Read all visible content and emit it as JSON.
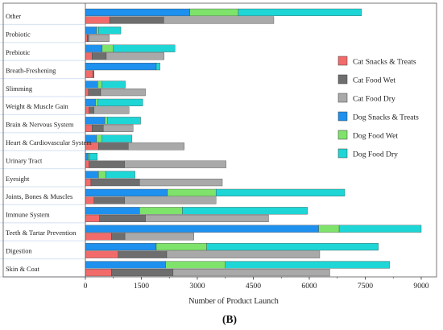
{
  "chart_data": {
    "type": "bar",
    "orientation": "horizontal",
    "stacked": true,
    "categories": [
      "Other",
      "Probiotic",
      "Prebiotic",
      "Breath-Freshening",
      "Slimming",
      "Weight & Muscle Gain",
      "Brain & Nervous System",
      "Heart & Cardiovascular System",
      "Urinary Tract",
      "Eyesight",
      "Joints, Bones & Muscles",
      "Immune System",
      "Teeth & Tartar Prevention",
      "Digestion",
      "Skin & Coat"
    ],
    "series": [
      {
        "name": "Cat Snacks & Treats",
        "color": "#f26b6b",
        "group": "cat",
        "values": [
          650,
          50,
          180,
          200,
          80,
          100,
          180,
          350,
          100,
          150,
          230,
          380,
          700,
          880,
          700
        ]
      },
      {
        "name": "Cat Food Wet",
        "color": "#6e6e6e",
        "group": "cat",
        "values": [
          1450,
          40,
          380,
          30,
          330,
          130,
          300,
          800,
          950,
          1300,
          820,
          1230,
          360,
          1300,
          1650
        ]
      },
      {
        "name": "Cat Food Dry",
        "color": "#a9a9a9",
        "group": "cat",
        "values": [
          2950,
          550,
          1550,
          0,
          1200,
          940,
          800,
          1500,
          2720,
          2220,
          2450,
          3300,
          1850,
          4100,
          4200
        ]
      },
      {
        "name": "Dog Snacks & Treats",
        "color": "#1e90ee",
        "group": "dog",
        "values": [
          2800,
          300,
          450,
          1900,
          330,
          270,
          520,
          300,
          80,
          350,
          2200,
          1450,
          6250,
          1900,
          2150
        ]
      },
      {
        "name": "Dog Food Wet",
        "color": "#7ee26b",
        "group": "dog",
        "values": [
          1300,
          50,
          300,
          0,
          120,
          70,
          80,
          150,
          40,
          200,
          1300,
          1150,
          550,
          1350,
          1600
        ]
      },
      {
        "name": "Dog Food Dry",
        "color": "#1ed6d6",
        "group": "dog",
        "values": [
          3300,
          600,
          1650,
          100,
          620,
          1200,
          880,
          800,
          200,
          780,
          3450,
          3350,
          2200,
          4600,
          4400
        ]
      }
    ],
    "xlim": [
      0,
      9000
    ],
    "xticks": [
      "0",
      "1500",
      "3000",
      "4500",
      "6000",
      "7500",
      "9000"
    ],
    "xlabel": "Number of Product Launch",
    "ylabel": "",
    "title": "",
    "legend_position": "right",
    "grid": false
  },
  "caption": "(B)"
}
